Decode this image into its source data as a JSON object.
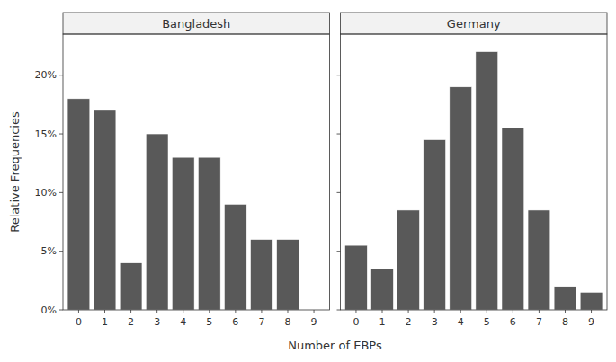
{
  "chart_data": [
    {
      "type": "bar",
      "title": "Bangladesh",
      "categories": [
        0,
        1,
        2,
        3,
        4,
        5,
        6,
        7,
        8,
        9
      ],
      "values": [
        18,
        17,
        4,
        15,
        13,
        13,
        9,
        6,
        6,
        0
      ],
      "color": "#595959",
      "x_label": "Number of EBPs",
      "y_label": "Relative Frequencies",
      "ylim": [
        0,
        23.5
      ],
      "yticks": [
        {
          "value": 0,
          "label": "0%"
        },
        {
          "value": 5,
          "label": "5%"
        },
        {
          "value": 10,
          "label": "10%"
        },
        {
          "value": 15,
          "label": "15%"
        },
        {
          "value": 20,
          "label": "20%"
        }
      ],
      "grid": false
    },
    {
      "type": "bar",
      "title": "Germany",
      "categories": [
        0,
        1,
        2,
        3,
        4,
        5,
        6,
        7,
        8,
        9
      ],
      "values": [
        5.5,
        3.5,
        8.5,
        14.5,
        19,
        22,
        15.5,
        8.5,
        2,
        1.5
      ],
      "color": "#595959",
      "ylim": [
        0,
        23.5
      ],
      "yticks": [
        {
          "value": 0,
          "label": "0%"
        },
        {
          "value": 5,
          "label": "5%"
        },
        {
          "value": 10,
          "label": "10%"
        },
        {
          "value": 15,
          "label": "15%"
        },
        {
          "value": 20,
          "label": "20%"
        }
      ],
      "grid": false,
      "tick_labels": "x"
    }
  ]
}
